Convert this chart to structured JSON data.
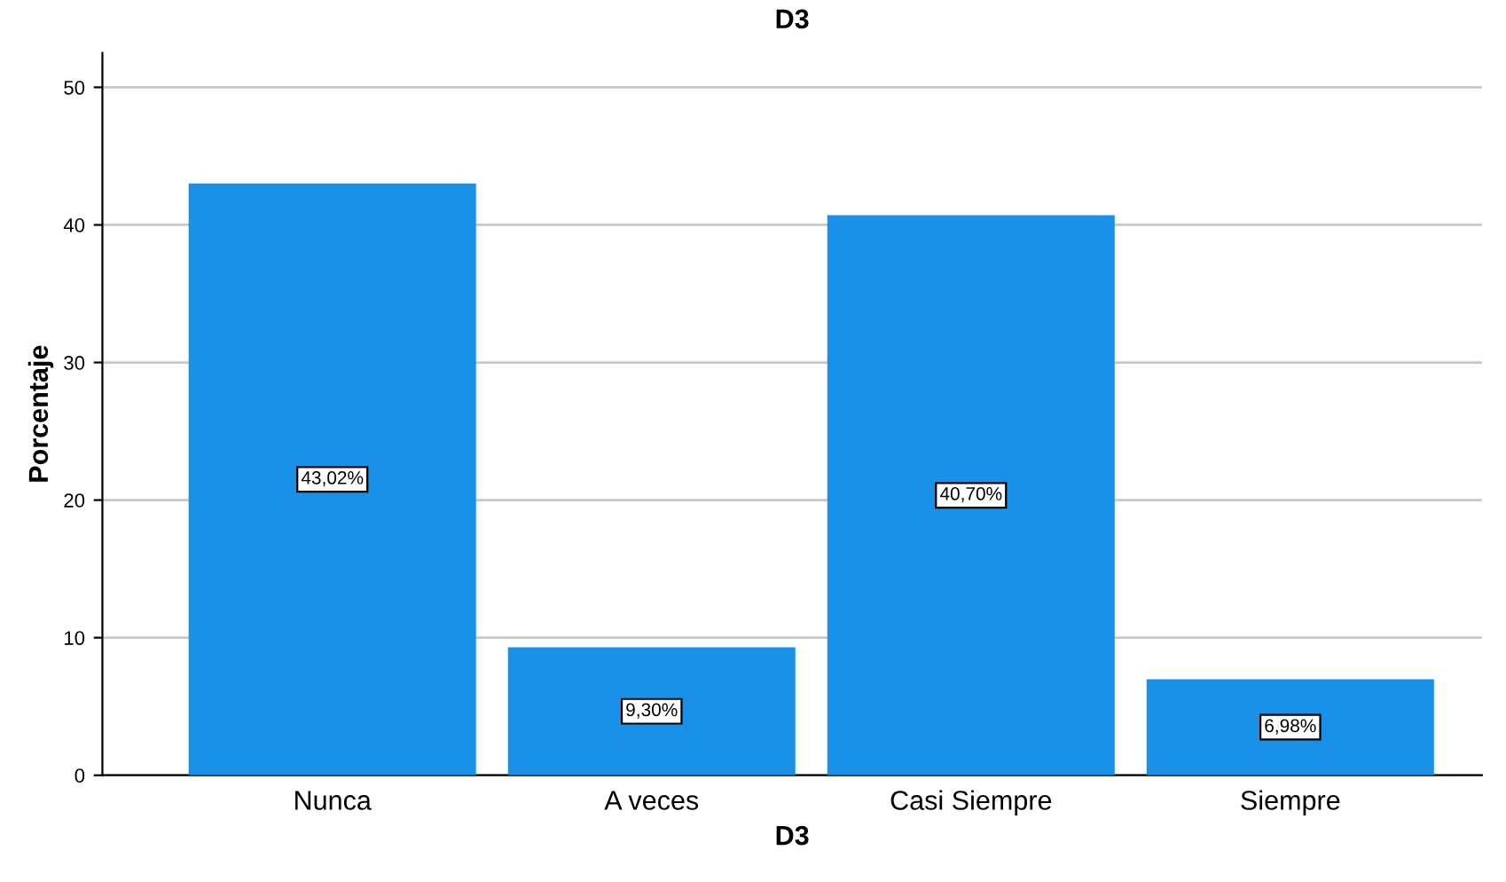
{
  "chart_data": {
    "type": "bar",
    "title": "D3",
    "xlabel": "D3",
    "ylabel": "Porcentaje",
    "categories": [
      "Nunca",
      "A veces",
      "Casi Siempre",
      "Siempre"
    ],
    "values": [
      43.02,
      9.3,
      40.7,
      6.98
    ],
    "value_labels": [
      "43,02%",
      "9,30%",
      "40,70%",
      "6,98%"
    ],
    "color": "#1a91e8",
    "ylim": [
      0,
      52.5
    ],
    "yticks": [
      0,
      10,
      20,
      30,
      40,
      50
    ],
    "grid": "y",
    "legend": false
  }
}
